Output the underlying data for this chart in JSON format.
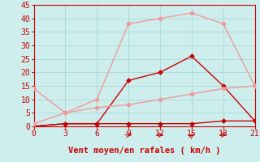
{
  "background_color": "#cdeeed",
  "grid_color": "#a8d8d8",
  "xlabel": "Vent moyen/en rafales ( km/h )",
  "xlabel_color": "#cc0000",
  "xlabel_fontsize": 7.5,
  "tick_color": "#cc0000",
  "tick_fontsize": 7,
  "xlim": [
    0,
    21
  ],
  "ylim": [
    0,
    45
  ],
  "xticks": [
    0,
    3,
    6,
    9,
    12,
    15,
    18,
    21
  ],
  "yticks": [
    0,
    5,
    10,
    15,
    20,
    25,
    30,
    35,
    40,
    45
  ],
  "lines": [
    {
      "x": [
        0,
        3,
        6,
        9,
        12,
        15,
        18,
        21
      ],
      "y": [
        0,
        1,
        1,
        1,
        1,
        1,
        2,
        2
      ],
      "color": "#cc0000",
      "linewidth": 1.0,
      "marker": "D",
      "markersize": 2.5
    },
    {
      "x": [
        0,
        3,
        6,
        9,
        12,
        15,
        18,
        21
      ],
      "y": [
        0,
        1,
        1,
        17,
        20,
        26,
        15,
        2
      ],
      "color": "#cc0000",
      "linewidth": 1.0,
      "marker": "D",
      "markersize": 2.5
    },
    {
      "x": [
        0,
        3,
        6,
        9,
        12,
        15,
        18,
        21
      ],
      "y": [
        14,
        5,
        7,
        8,
        10,
        12,
        14,
        15
      ],
      "color": "#ee9999",
      "linewidth": 1.0,
      "marker": "D",
      "markersize": 2.5
    },
    {
      "x": [
        0,
        3,
        6,
        9,
        12,
        15,
        18,
        21
      ],
      "y": [
        1,
        5,
        10,
        38,
        40,
        42,
        38,
        15
      ],
      "color": "#ee9999",
      "linewidth": 1.0,
      "marker": "D",
      "markersize": 2.5
    }
  ]
}
